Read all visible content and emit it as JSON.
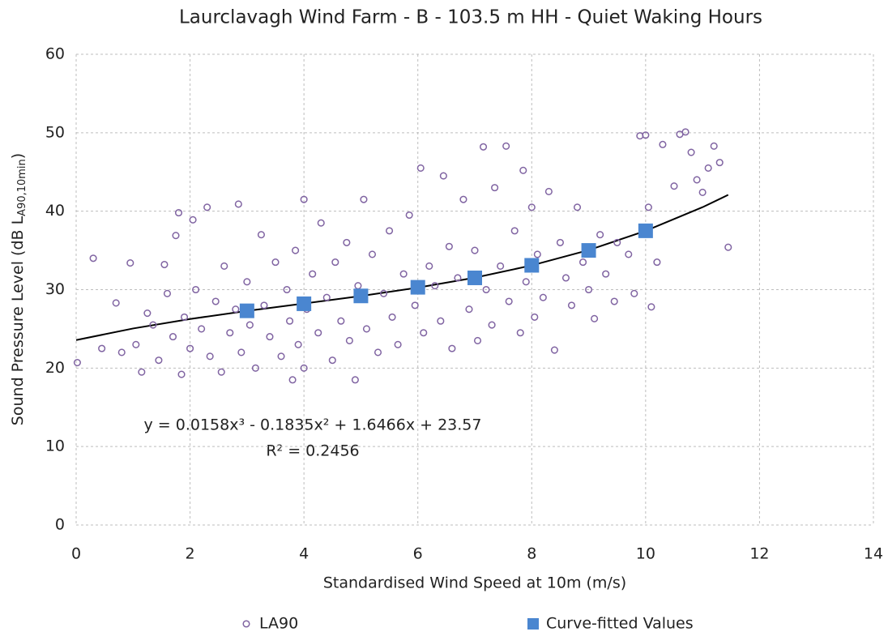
{
  "chart_data": {
    "type": "scatter",
    "title": "Laurclavagh Wind Farm - B - 103.5 m HH - Quiet Waking Hours",
    "xlabel": "Standardised Wind Speed at 10m (m/s)",
    "ylabel": [
      "Sound Pressure Level (dB L",
      "A90,10min",
      ")"
    ],
    "xlim": [
      0,
      14
    ],
    "xticks": [
      0,
      2,
      4,
      6,
      8,
      10,
      12,
      14
    ],
    "ylim": [
      0,
      60
    ],
    "yticks": [
      0,
      10,
      20,
      30,
      40,
      50,
      60
    ],
    "grid": true,
    "legend": "bottom",
    "series": [
      {
        "name": "LA90",
        "color": "#8064a2",
        "marker": "circle",
        "x": [
          0.02,
          0.3,
          0.45,
          0.7,
          0.8,
          0.95,
          1.05,
          1.15,
          1.25,
          1.35,
          1.45,
          1.55,
          1.6,
          1.7,
          1.75,
          1.8,
          1.85,
          1.9,
          2.0,
          2.05,
          2.1,
          2.2,
          2.3,
          2.35,
          2.45,
          2.55,
          2.6,
          2.7,
          2.8,
          2.85,
          2.9,
          3.0,
          3.05,
          3.15,
          3.25,
          3.3,
          3.4,
          3.5,
          3.6,
          3.7,
          3.75,
          3.8,
          3.85,
          3.9,
          4.0,
          4.0,
          4.05,
          4.15,
          4.25,
          4.3,
          4.4,
          4.5,
          4.55,
          4.65,
          4.75,
          4.8,
          4.9,
          4.95,
          5.05,
          5.1,
          5.2,
          5.3,
          5.4,
          5.5,
          5.55,
          5.65,
          5.75,
          5.85,
          5.95,
          6.05,
          6.1,
          6.2,
          6.3,
          6.4,
          6.45,
          6.55,
          6.6,
          6.7,
          6.8,
          6.9,
          7.0,
          7.05,
          7.15,
          7.2,
          7.3,
          7.35,
          7.45,
          7.55,
          7.6,
          7.7,
          7.8,
          7.85,
          7.9,
          8.0,
          8.05,
          8.1,
          8.2,
          8.3,
          8.4,
          8.5,
          8.6,
          8.7,
          8.8,
          8.9,
          9.0,
          9.1,
          9.2,
          9.3,
          9.45,
          9.5,
          9.7,
          9.8,
          9.9,
          10.0,
          10.05,
          10.1,
          10.2,
          10.3,
          10.5,
          10.6,
          10.7,
          10.8,
          10.9,
          11.0,
          11.1,
          11.2,
          11.3,
          11.45
        ],
        "values": [
          20.7,
          34.0,
          22.5,
          28.3,
          22.0,
          33.4,
          23.0,
          19.5,
          27.0,
          25.5,
          21.0,
          33.2,
          29.5,
          24.0,
          36.9,
          39.8,
          19.2,
          26.5,
          22.5,
          38.9,
          30.0,
          25.0,
          40.5,
          21.5,
          28.5,
          19.5,
          33.0,
          24.5,
          27.5,
          40.9,
          22.0,
          31.0,
          25.5,
          20.0,
          37.0,
          28.0,
          24.0,
          33.5,
          21.5,
          30.0,
          26.0,
          18.5,
          35.0,
          23.0,
          41.5,
          20.0,
          27.5,
          32.0,
          24.5,
          38.5,
          29.0,
          21.0,
          33.5,
          26.0,
          36.0,
          23.5,
          18.5,
          30.5,
          41.5,
          25.0,
          34.5,
          22.0,
          29.5,
          37.5,
          26.5,
          23.0,
          32.0,
          39.5,
          28.0,
          45.5,
          24.5,
          33.0,
          30.5,
          26.0,
          44.5,
          35.5,
          22.5,
          31.5,
          41.5,
          27.5,
          35.0,
          23.5,
          48.2,
          30.0,
          25.5,
          43.0,
          33.0,
          48.3,
          28.5,
          37.5,
          24.5,
          45.2,
          31.0,
          40.5,
          26.5,
          34.5,
          29.0,
          42.5,
          22.3,
          36.0,
          31.5,
          28.0,
          40.5,
          33.5,
          30.0,
          26.3,
          37.0,
          32.0,
          28.5,
          36.0,
          34.5,
          29.5,
          49.6,
          49.7,
          40.5,
          27.8,
          33.5,
          48.5,
          43.2,
          49.8,
          50.1,
          47.5,
          44.0,
          42.4,
          45.5,
          48.3,
          46.2,
          35.4
        ]
      },
      {
        "name": "Curve-fitted Values",
        "color": "#4a86d0",
        "marker": "square",
        "x": [
          3,
          4,
          5,
          6,
          7,
          8,
          9,
          10
        ],
        "values": [
          27.3,
          28.2,
          29.2,
          30.3,
          31.5,
          33.1,
          35.0,
          37.5
        ]
      }
    ],
    "trendline": {
      "color": "#000000",
      "x": [
        0,
        1,
        2,
        3,
        4,
        5,
        6,
        7,
        8,
        9,
        10,
        11,
        11.45
      ],
      "values": [
        23.57,
        25.05,
        26.26,
        27.29,
        28.23,
        29.19,
        30.26,
        31.52,
        33.09,
        35.04,
        37.49,
        40.51,
        42.08
      ]
    },
    "equation": "y = 0.0158x³ - 0.1835x² + 1.6466x + 23.57",
    "r_squared": "R² = 0.2456"
  }
}
